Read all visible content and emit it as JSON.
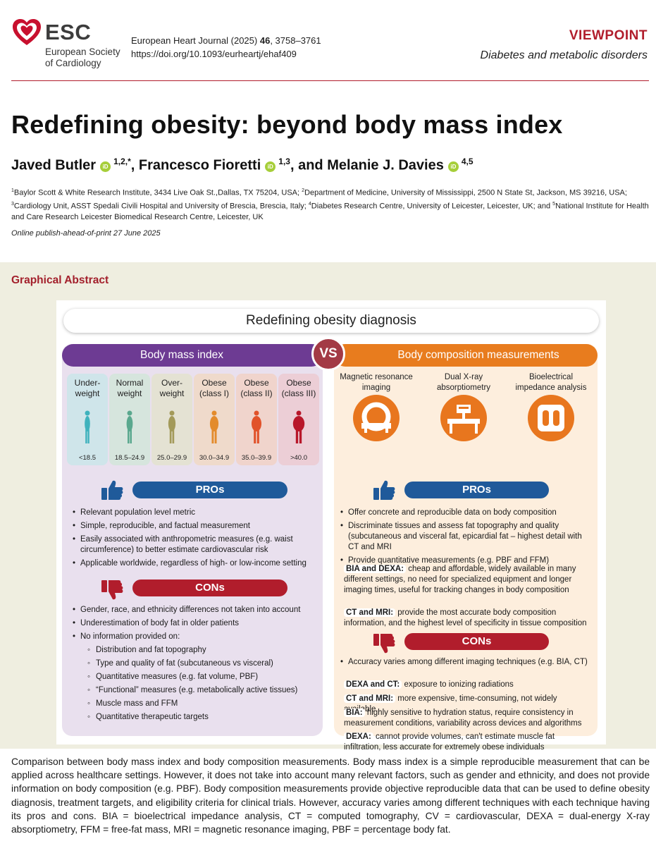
{
  "header": {
    "logo_word": "ESC",
    "logo_sub1": "European Society",
    "logo_sub2": "of Cardiology",
    "journal_name": "European Heart Journal (2025)",
    "journal_volume": "46",
    "journal_pages": ", 3758–3761",
    "doi": "https://doi.org/10.1093/eurheartj/ehaf409",
    "article_type": "VIEWPOINT",
    "category": "Diabetes and metabolic disorders"
  },
  "article": {
    "title": "Redefining obesity: beyond body mass index",
    "authors": [
      {
        "name": "Javed Butler",
        "sup": "1,2,*"
      },
      {
        "name": "Francesco Fioretti",
        "sup": "1,3"
      },
      {
        "name": "and Melanie J. Davies",
        "sup": "4,5"
      }
    ],
    "author_sep": ",",
    "orcid_label": "iD",
    "affiliations": [
      {
        "n": "1",
        "text": "Baylor Scott & White Research Institute, 3434 Live Oak St.,Dallas, TX 75204, USA; "
      },
      {
        "n": "2",
        "text": "Department of Medicine, University of Mississippi, 2500 N State St, Jackson, MS 39216, USA; "
      },
      {
        "n": "3",
        "text": "Cardiology Unit, ASST Spedali Civili Hospital and University of Brescia, Brescia, Italy; "
      },
      {
        "n": "4",
        "text": "Diabetes Research Centre, University of Leicester, Leicester, UK; and "
      },
      {
        "n": "5",
        "text": "National Institute for Health and Care Research Leicester Biomedical Research Centre, Leicester, UK"
      }
    ],
    "published": "Online publish-ahead-of-print 27 June 2025"
  },
  "graphical_abstract": {
    "label": "Graphical Abstract",
    "title": "Redefining obesity diagnosis",
    "vs": "VS",
    "left": {
      "heading": "Body mass index",
      "categories": [
        {
          "name": "Under-weight",
          "range": "<18.5",
          "bg": "#cfe5ea",
          "fig": "#3fb2bd"
        },
        {
          "name": "Normal weight",
          "range": "18.5–24.9",
          "bg": "#d6e5dd",
          "fig": "#5aa88e"
        },
        {
          "name": "Over-weight",
          "range": "25.0–29.9",
          "bg": "#e4e2d3",
          "fig": "#a39a5a"
        },
        {
          "name": "Obese (class I)",
          "range": "30.0–34.9",
          "bg": "#efdacb",
          "fig": "#e38b2c"
        },
        {
          "name": "Obese (class II)",
          "range": "35.0–39.9",
          "bg": "#f0d4cc",
          "fig": "#e1522a"
        },
        {
          "name": "Obese (class III)",
          "range": ">40.0",
          "bg": "#ecced6",
          "fig": "#b8172a"
        }
      ],
      "pros_label": "PROs",
      "pros": [
        "Relevant population level metric",
        "Simple, reproducible, and factual measurement",
        "Easily associated with anthropometric measures (e.g. waist circumference) to better estimate cardiovascular risk",
        "Applicable worldwide, regardless of high- or low-income setting"
      ],
      "cons_label": "CONs",
      "cons": [
        "Gender, race, and ethnicity differences not taken into account",
        "Underestimation of body fat in older patients",
        "No information provided on:"
      ],
      "cons_sub": [
        "Distribution and fat topography",
        "Type and quality of fat (subcutaneous vs visceral)",
        "Quantitative measures (e.g. fat volume, PBF)",
        "“Functional” measures (e.g. metabolically active tissues)",
        "Muscle mass and FFM",
        "Quantitative therapeutic targets"
      ]
    },
    "right": {
      "heading": "Body composition measurements",
      "techniques": [
        {
          "name": "Magnetic resonance imaging",
          "icon": "mri-scanner-icon"
        },
        {
          "name": "Dual X-ray absorptiometry",
          "icon": "dexa-table-icon"
        },
        {
          "name": "Bioelectrical impedance analysis",
          "icon": "bia-scale-icon"
        }
      ],
      "pros_label": "PROs",
      "pros": [
        "Offer concrete and reproducible data on body composition",
        "Discriminate tissues and assess fat topography and quality (subcutaneous and visceral fat, epicardial fat – highest detail with CT and MRI",
        "Provide quantitative measurements (e.g. PBF and FFM)"
      ],
      "pros_notes": [
        {
          "tag": "BIA and DEXA:",
          "text": "cheap and affordable, widely available in many different settings, no need for specialized equipment and longer imaging times, useful for tracking changes in body composition"
        },
        {
          "tag": "CT and MRI:",
          "text": "provide the most accurate body composition information, and the highest level of specificity in tissue composition"
        }
      ],
      "cons_label": "CONs",
      "cons": [
        "Accuracy varies among different imaging techniques (e.g. BIA, CT)"
      ],
      "cons_notes": [
        {
          "tag": "DEXA and CT:",
          "text": "exposure to ionizing radiations"
        },
        {
          "tag": "CT and MRI:",
          "text": "more expensive, time-consuming, not widely available"
        },
        {
          "tag": "BIA:",
          "text": "highly sensitive to hydration status, require consistency in measurement conditions, variability across devices and algorithms"
        },
        {
          "tag": "DEXA:",
          "text": "cannot provide volumes, can't estimate muscle fat infiltration, less accurate for extremely obese individuals"
        }
      ]
    }
  },
  "caption": "Comparison between body mass index and body composition measurements. Body mass index is a simple reproducible measurement that can be applied across healthcare settings. However, it does not take into account many relevant factors, such as gender and ethnicity, and does not provide information on body composition (e.g. PBF). Body composition measurements provide objective reproducible data that can be used to define obesity diagnosis, treatment targets, and eligibility criteria for clinical trials. However, accuracy varies among different techniques with each technique having its pros and cons. BIA = bioelectrical impedance analysis, CT = computed tomography, CV = cardiovascular, DEXA = dual-energy X-ray absorptiometry, FFM = free-fat mass, MRI = magnetic resonance imaging, PBF = percentage body fat."
}
